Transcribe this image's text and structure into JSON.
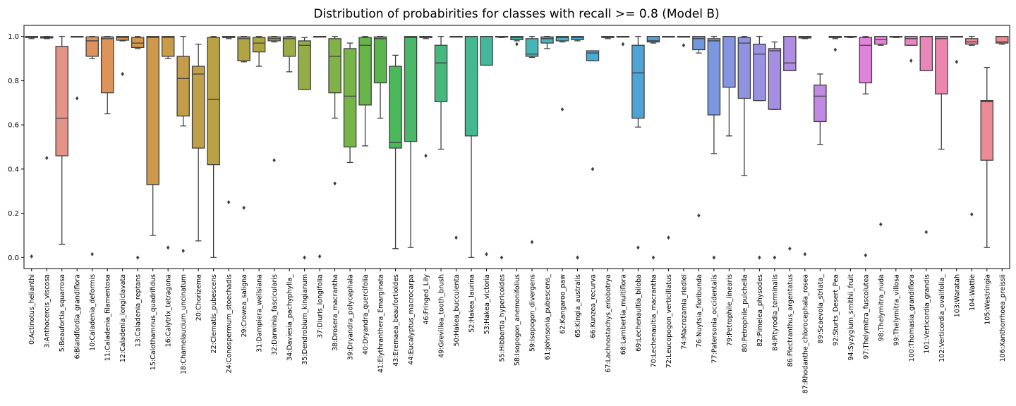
{
  "chart_data": {
    "type": "box",
    "title": "Distribution of probabirities for classes with recall >= 0.8 (Model B)",
    "xlabel": "",
    "ylabel": "",
    "ylim": [
      -0.05,
      1.05
    ],
    "yticks": [
      0.0,
      0.2,
      0.4,
      0.6,
      0.8,
      1.0
    ],
    "ytick_labels": [
      "0.0",
      "0.2",
      "0.4",
      "0.6",
      "0.8",
      "1.0"
    ],
    "grid": false,
    "legend": "none",
    "classes": [
      {
        "label": "0:Actinotus_helianthi",
        "q1": 0.995,
        "median": 0.998,
        "q3": 1.0,
        "whislo": 0.99,
        "whishi": 1.0,
        "fliers": [
          0.005
        ],
        "color": "#e8827a"
      },
      {
        "label": "3:Anthocercis_viscosa",
        "q1": 0.993,
        "median": 0.996,
        "q3": 0.999,
        "whislo": 0.99,
        "whishi": 1.0,
        "fliers": [
          0.45
        ],
        "color": "#e58f78"
      },
      {
        "label": "5:Beaufortia_squarrosa",
        "q1": 0.46,
        "median": 0.63,
        "q3": 0.955,
        "whislo": 0.06,
        "whishi": 1.0,
        "fliers": [],
        "color": "#e39486"
      },
      {
        "label": "6:Blandfordia_grandiflora",
        "q1": 0.999,
        "median": 1.0,
        "q3": 1.0,
        "whislo": 0.998,
        "whishi": 1.0,
        "fliers": [
          0.72
        ],
        "color": "#e5907a"
      },
      {
        "label": "10:Caladenia_deformis",
        "q1": 0.91,
        "median": 0.98,
        "q3": 0.998,
        "whislo": 0.9,
        "whishi": 1.0,
        "fliers": [
          0.015
        ],
        "color": "#e0925e"
      },
      {
        "label": "11:Caladenia_filamentosa",
        "q1": 0.745,
        "median": 0.99,
        "q3": 0.998,
        "whislo": 0.65,
        "whishi": 1.0,
        "fliers": [],
        "color": "#de9358"
      },
      {
        "label": "12:Caladenia_longiclavata",
        "q1": 0.983,
        "median": 0.995,
        "q3": 1.0,
        "whislo": 0.98,
        "whishi": 1.0,
        "fliers": [
          0.83
        ],
        "color": "#d99553"
      },
      {
        "label": "13:Caladenia_reptans",
        "q1": 0.95,
        "median": 0.97,
        "q3": 0.995,
        "whislo": 0.945,
        "whishi": 1.0,
        "fliers": [
          0.0
        ],
        "color": "#d3974d"
      },
      {
        "label": "15:Calothamnus_quadrifidus",
        "q1": 0.33,
        "median": 0.995,
        "q3": 1.0,
        "whislo": 0.1,
        "whishi": 1.0,
        "fliers": [],
        "color": "#ce994a"
      },
      {
        "label": "16:Calytrix_tetragona",
        "q1": 0.91,
        "median": 0.995,
        "q3": 1.0,
        "whislo": 0.9,
        "whishi": 1.0,
        "fliers": [
          0.045
        ],
        "color": "#c99c48"
      },
      {
        "label": "18:Chamelaucium_uncinatum",
        "q1": 0.64,
        "median": 0.81,
        "q3": 0.91,
        "whislo": 0.595,
        "whishi": 1.0,
        "fliers": [
          0.03
        ],
        "color": "#c59d4a"
      },
      {
        "label": "20:Chorizema",
        "q1": 0.495,
        "median": 0.83,
        "q3": 0.865,
        "whislo": 0.075,
        "whishi": 0.965,
        "fliers": [],
        "color": "#bf9f47"
      },
      {
        "label": "22:Clematis_pubescens",
        "q1": 0.42,
        "median": 0.715,
        "q3": 0.995,
        "whislo": 0.0,
        "whishi": 1.0,
        "fliers": [],
        "color": "#baa145"
      },
      {
        "label": "24:Conospermum_stoechadis",
        "q1": 0.995,
        "median": 0.998,
        "q3": 1.0,
        "whislo": 0.99,
        "whishi": 1.0,
        "fliers": [
          0.25
        ],
        "color": "#b5a344"
      },
      {
        "label": "29:Crowea_saligna",
        "q1": 0.89,
        "median": 0.99,
        "q3": 0.998,
        "whislo": 0.885,
        "whishi": 1.0,
        "fliers": [
          0.225
        ],
        "color": "#b0a542"
      },
      {
        "label": "31:Dampiera_wellsiana",
        "q1": 0.93,
        "median": 0.97,
        "q3": 0.995,
        "whislo": 0.865,
        "whishi": 1.0,
        "fliers": [],
        "color": "#aaa642"
      },
      {
        "label": "32:Darwinia_fascicularis",
        "q1": 0.98,
        "median": 0.99,
        "q3": 0.998,
        "whislo": 0.975,
        "whishi": 1.0,
        "fliers": [
          0.44
        ],
        "color": "#a3a943"
      },
      {
        "label": "34:Daviesia_pachyphylla_",
        "q1": 0.91,
        "median": 0.99,
        "q3": 0.998,
        "whislo": 0.84,
        "whishi": 1.0,
        "fliers": [],
        "color": "#9cab44"
      },
      {
        "label": "35:Dendrobium_kingianum",
        "q1": 0.76,
        "median": 0.96,
        "q3": 0.98,
        "whislo": 0.76,
        "whishi": 0.995,
        "fliers": [
          0.0
        ],
        "color": "#94ad45"
      },
      {
        "label": "37:Diuris_longifolia",
        "q1": 0.999,
        "median": 1.0,
        "q3": 1.0,
        "whislo": 0.998,
        "whishi": 1.0,
        "fliers": [
          0.005
        ],
        "color": "#8bb046"
      },
      {
        "label": "38:Drosera_macrantha",
        "q1": 0.745,
        "median": 0.91,
        "q3": 0.99,
        "whislo": 0.63,
        "whishi": 1.0,
        "fliers": [
          0.335
        ],
        "color": "#81b247"
      },
      {
        "label": "39:Dryandra_polycephala",
        "q1": 0.5,
        "median": 0.73,
        "q3": 0.945,
        "whislo": 0.43,
        "whishi": 0.97,
        "fliers": [],
        "color": "#76b448"
      },
      {
        "label": "40:Dryandra_quercifolia",
        "q1": 0.69,
        "median": 0.96,
        "q3": 0.995,
        "whislo": 0.505,
        "whishi": 1.0,
        "fliers": [],
        "color": "#68b649"
      },
      {
        "label": "41:Elythranthera_Emarginata",
        "q1": 0.79,
        "median": 0.99,
        "q3": 0.998,
        "whislo": 0.63,
        "whishi": 1.0,
        "fliers": [],
        "color": "#58b84b"
      },
      {
        "label": "43:Eremaea_beaufortioides",
        "q1": 0.495,
        "median": 0.52,
        "q3": 0.865,
        "whislo": 0.04,
        "whishi": 0.915,
        "fliers": [],
        "color": "#4bb85a"
      },
      {
        "label": "44:Eucalyptus_macrocarpa",
        "q1": 0.525,
        "median": 0.995,
        "q3": 1.0,
        "whislo": 0.045,
        "whishi": 1.0,
        "fliers": [],
        "color": "#49b868"
      },
      {
        "label": "46:Fringed_Lily",
        "q1": 0.995,
        "median": 0.998,
        "q3": 1.0,
        "whislo": 0.99,
        "whishi": 1.0,
        "fliers": [
          0.46
        ],
        "color": "#47b873"
      },
      {
        "label": "49:Grevillea_tooth_brush",
        "q1": 0.705,
        "median": 0.88,
        "q3": 0.96,
        "whislo": 0.49,
        "whishi": 1.0,
        "fliers": [],
        "color": "#46b87e"
      },
      {
        "label": "50:Hakea_bucculenta",
        "q1": 0.999,
        "median": 1.0,
        "q3": 1.0,
        "whislo": 0.998,
        "whishi": 1.0,
        "fliers": [
          0.09
        ],
        "color": "#45b888"
      },
      {
        "label": "52:Hakea_laurina",
        "q1": 0.55,
        "median": 1.0,
        "q3": 1.0,
        "whislo": 0.0,
        "whishi": 1.0,
        "fliers": [],
        "color": "#44b891"
      },
      {
        "label": "53:Hakea_victoria",
        "q1": 0.87,
        "median": 1.0,
        "q3": 1.0,
        "whislo": 0.87,
        "whishi": 1.0,
        "fliers": [
          0.015
        ],
        "color": "#44b79a"
      },
      {
        "label": "55:Hibbertia_hypericoides",
        "q1": 0.998,
        "median": 1.0,
        "q3": 1.0,
        "whislo": 0.995,
        "whishi": 1.0,
        "fliers": [
          0.0
        ],
        "color": "#44b7a3"
      },
      {
        "label": "58:Isopogon_anemonifolius",
        "q1": 0.985,
        "median": 0.995,
        "q3": 1.0,
        "whislo": 0.98,
        "whishi": 1.0,
        "fliers": [
          0.965
        ],
        "color": "#45b6ac"
      },
      {
        "label": "59:Isopogon_divergens",
        "q1": 0.91,
        "median": 0.92,
        "q3": 0.99,
        "whislo": 0.905,
        "whishi": 1.0,
        "fliers": [
          0.07
        ],
        "color": "#45b5b5"
      },
      {
        "label": "61:Johnsonia_pubescens_",
        "q1": 0.97,
        "median": 0.99,
        "q3": 0.998,
        "whislo": 0.945,
        "whishi": 1.0,
        "fliers": [],
        "color": "#46b3be"
      },
      {
        "label": "62:Kangaroo_paw",
        "q1": 0.98,
        "median": 0.995,
        "q3": 1.0,
        "whislo": 0.975,
        "whishi": 1.0,
        "fliers": [
          0.67
        ],
        "color": "#47b1c7"
      },
      {
        "label": "65:Kingia_australis",
        "q1": 0.985,
        "median": 0.995,
        "q3": 1.0,
        "whislo": 0.98,
        "whishi": 1.0,
        "fliers": [
          0.0
        ],
        "color": "#48afcf"
      },
      {
        "label": "66:Kunzea_recurva",
        "q1": 0.89,
        "median": 0.925,
        "q3": 0.935,
        "whislo": 0.89,
        "whishi": 0.935,
        "fliers": [
          0.4
        ],
        "color": "#49acd6"
      },
      {
        "label": "67:Lachnostachys_eriobotrya",
        "q1": 0.995,
        "median": 0.998,
        "q3": 1.0,
        "whislo": 0.99,
        "whishi": 1.0,
        "fliers": [],
        "color": "#4aa9da"
      },
      {
        "label": "68:Lambertia_multiflora",
        "q1": 0.999,
        "median": 1.0,
        "q3": 1.0,
        "whislo": 0.998,
        "whishi": 1.0,
        "fliers": [
          0.965
        ],
        "color": "#4ba7d8"
      },
      {
        "label": "69:Lechenaultia_biloba",
        "q1": 0.63,
        "median": 0.835,
        "q3": 0.96,
        "whislo": 0.59,
        "whishi": 1.0,
        "fliers": [
          0.045
        ],
        "color": "#4ea5d5"
      },
      {
        "label": "70:Lechenaultia_macrantha",
        "q1": 0.975,
        "median": 0.98,
        "q3": 1.0,
        "whislo": 0.97,
        "whishi": 1.0,
        "fliers": [
          0.0
        ],
        "color": "#55a2d7"
      },
      {
        "label": "72:Leucopogon_verticillatus",
        "q1": 0.999,
        "median": 1.0,
        "q3": 1.0,
        "whislo": 0.998,
        "whishi": 1.0,
        "fliers": [
          0.09
        ],
        "color": "#5d9fd9"
      },
      {
        "label": "74:Macrozamia_riedlei",
        "q1": 0.999,
        "median": 1.0,
        "q3": 1.0,
        "whislo": 0.998,
        "whishi": 1.0,
        "fliers": [
          0.96
        ],
        "color": "#669cdb"
      },
      {
        "label": "76:Nuytsia_floribunda",
        "q1": 0.94,
        "median": 0.99,
        "q3": 1.0,
        "whislo": 0.925,
        "whishi": 1.0,
        "fliers": [
          0.19
        ],
        "color": "#7099dd"
      },
      {
        "label": "77:Patersonia_occidentalis",
        "q1": 0.645,
        "median": 0.98,
        "q3": 0.99,
        "whislo": 0.47,
        "whishi": 1.0,
        "fliers": [
          0.0
        ],
        "color": "#7b97df"
      },
      {
        "label": "79:Petrophile_linearis",
        "q1": 0.77,
        "median": 1.0,
        "q3": 1.0,
        "whislo": 0.55,
        "whishi": 1.0,
        "fliers": [],
        "color": "#8595e1"
      },
      {
        "label": "80:Petrophile_pulchella",
        "q1": 0.72,
        "median": 0.97,
        "q3": 0.995,
        "whislo": 0.37,
        "whishi": 1.0,
        "fliers": [],
        "color": "#8f93e2"
      },
      {
        "label": "82:Pimelea_physodes",
        "q1": 0.71,
        "median": 0.92,
        "q3": 0.965,
        "whislo": 0.71,
        "whishi": 1.0,
        "fliers": [
          0.0
        ],
        "color": "#9a91e3"
      },
      {
        "label": "84:Pityrodia_terminalis",
        "q1": 0.67,
        "median": 0.935,
        "q3": 0.945,
        "whislo": 0.67,
        "whishi": 0.975,
        "fliers": [
          0.0
        ],
        "color": "#a48fe3"
      },
      {
        "label": "86:Plectranthus_argentatus",
        "q1": 0.845,
        "median": 0.88,
        "q3": 1.0,
        "whislo": 0.845,
        "whishi": 1.0,
        "fliers": [
          0.04
        ],
        "color": "#ae8de3"
      },
      {
        "label": "87:Rhodanthe_chlorocephala_rosea",
        "q1": 0.993,
        "median": 0.997,
        "q3": 1.0,
        "whislo": 0.99,
        "whishi": 1.0,
        "fliers": [
          0.015
        ],
        "color": "#b88be3"
      },
      {
        "label": "89:Scaevola_striata_",
        "q1": 0.615,
        "median": 0.73,
        "q3": 0.78,
        "whislo": 0.51,
        "whishi": 0.83,
        "fliers": [],
        "color": "#c289e2"
      },
      {
        "label": "92:Sturts_Desert_Pea",
        "q1": 0.995,
        "median": 0.998,
        "q3": 1.0,
        "whislo": 0.99,
        "whishi": 1.0,
        "fliers": [
          0.94
        ],
        "color": "#cc87e0"
      },
      {
        "label": "94:Syzygium_smithii_fruit",
        "q1": 0.997,
        "median": 0.999,
        "q3": 1.0,
        "whislo": 0.995,
        "whishi": 1.0,
        "fliers": [],
        "color": "#d685de"
      },
      {
        "label": "97:Thelymitra_fuscolutea",
        "q1": 0.79,
        "median": 0.96,
        "q3": 0.995,
        "whislo": 0.74,
        "whishi": 1.0,
        "fliers": [
          0.01
        ],
        "color": "#e083db"
      },
      {
        "label": "98:Thelymitra_nuda",
        "q1": 0.965,
        "median": 0.985,
        "q3": 1.0,
        "whislo": 0.96,
        "whishi": 1.0,
        "fliers": [
          0.15
        ],
        "color": "#e683d3"
      },
      {
        "label": "99:Thelymitra_villosa",
        "q1": 0.998,
        "median": 1.0,
        "q3": 1.0,
        "whislo": 0.995,
        "whishi": 1.0,
        "fliers": [],
        "color": "#e884ca"
      },
      {
        "label": "100:Thomasia_grandiflora",
        "q1": 0.96,
        "median": 0.99,
        "q3": 1.0,
        "whislo": 0.96,
        "whishi": 1.0,
        "fliers": [
          0.89
        ],
        "color": "#e985c1"
      },
      {
        "label": "101:Verticordia_grandis",
        "q1": 0.845,
        "median": 1.0,
        "q3": 1.0,
        "whislo": 0.845,
        "whishi": 1.0,
        "fliers": [
          0.115
        ],
        "color": "#ea86b8"
      },
      {
        "label": "102:Verticordia_ovalifolia_",
        "q1": 0.74,
        "median": 0.99,
        "q3": 1.0,
        "whislo": 0.49,
        "whishi": 1.0,
        "fliers": [],
        "color": "#eb87af"
      },
      {
        "label": "103:Waratah",
        "q1": 0.999,
        "median": 1.0,
        "q3": 1.0,
        "whislo": 0.998,
        "whishi": 1.0,
        "fliers": [
          0.885
        ],
        "color": "#eb88a6"
      },
      {
        "label": "104:Wattie",
        "q1": 0.965,
        "median": 0.975,
        "q3": 0.99,
        "whislo": 0.96,
        "whishi": 1.0,
        "fliers": [
          0.195
        ],
        "color": "#ec899d"
      },
      {
        "label": "105:Westringia",
        "q1": 0.44,
        "median": 0.705,
        "q3": 0.71,
        "whislo": 0.045,
        "whishi": 0.86,
        "fliers": [],
        "color": "#ec8a95"
      },
      {
        "label": "106:Xanthorrhoea_preissii",
        "q1": 0.97,
        "median": 0.975,
        "q3": 1.0,
        "whislo": 0.965,
        "whishi": 1.0,
        "fliers": [],
        "color": "#ec8b8d"
      }
    ]
  }
}
